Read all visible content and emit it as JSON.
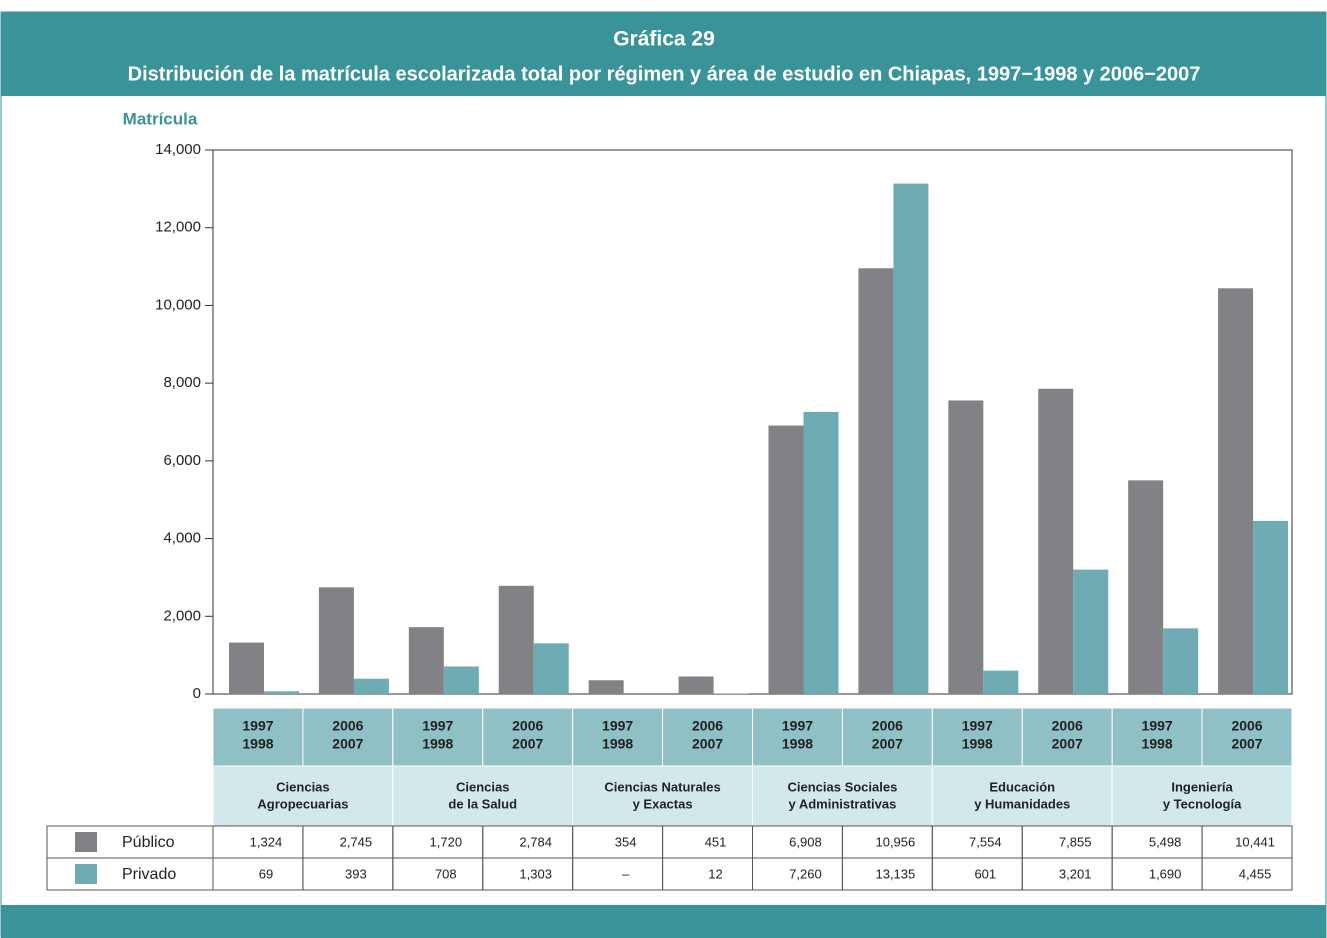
{
  "chart_data": {
    "type": "bar",
    "title": "Gráfica 29",
    "subtitle": "Distribución de la matrícula escolarizada total por régimen y área de estudio en Chiapas, 1997−1998 y 2006−2007",
    "y_label": "Matrícula",
    "categories": [
      [
        "1997",
        "1998"
      ],
      [
        "2006",
        "2007"
      ],
      [
        "1997",
        "1998"
      ],
      [
        "2006",
        "2007"
      ],
      [
        "1997",
        "1998"
      ],
      [
        "2006",
        "2007"
      ],
      [
        "1997",
        "1998"
      ],
      [
        "2006",
        "2007"
      ],
      [
        "1997",
        "1998"
      ],
      [
        "2006",
        "2007"
      ],
      [
        "1997",
        "1998"
      ],
      [
        "2006",
        "2007"
      ]
    ],
    "areas": [
      [
        "Ciencias",
        "Agropecuarias"
      ],
      [
        "Ciencias",
        "de la Salud"
      ],
      [
        "Ciencias Naturales",
        "y Exactas"
      ],
      [
        "Ciencias Sociales",
        "y Administrativas"
      ],
      [
        "Educación",
        "y Humanidades"
      ],
      [
        "Ingeniería",
        "y Tecnología"
      ]
    ],
    "series": [
      {
        "name": "Público",
        "color": "#818186",
        "values": [
          1324,
          2745,
          1720,
          2784,
          354,
          451,
          6908,
          10956,
          7554,
          7855,
          5498,
          10441
        ],
        "value_labels": [
          "1,324",
          "2,745",
          "1,720",
          "2,784",
          "354",
          "451",
          "6,908",
          "10,956",
          "7,554",
          "7,855",
          "5,498",
          "10,441"
        ]
      },
      {
        "name": "Privado",
        "color": "#6eabb3",
        "values": [
          69,
          393,
          708,
          1303,
          null,
          12,
          7260,
          13135,
          601,
          3201,
          1690,
          4455
        ],
        "value_labels": [
          "69",
          "393",
          "708",
          "1,303",
          "–",
          "12",
          "7,260",
          "13,135",
          "601",
          "3,201",
          "1,690",
          "4,455"
        ]
      }
    ],
    "ylim": [
      0,
      14000
    ],
    "yticks": [
      0,
      {
        "value": 2000,
        "label": "2,000"
      },
      {
        "value": 4000,
        "label": "4,000"
      },
      {
        "value": 6000,
        "label": "6,000"
      },
      {
        "value": 8000,
        "label": "8,000"
      },
      {
        "value": 10000,
        "label": "10,000"
      },
      {
        "value": 12000,
        "label": "12,000"
      },
      {
        "value": 14000,
        "label": "14,000"
      }
    ]
  }
}
